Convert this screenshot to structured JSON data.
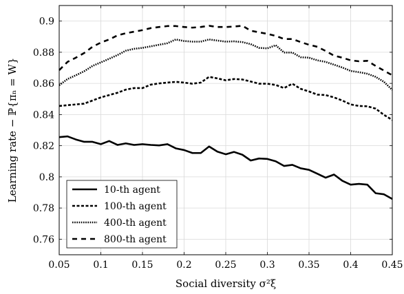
{
  "chart_data": {
    "type": "line",
    "xlabel": "Social diversity σ²ξ",
    "ylabel": "Learning rate − ℙ{πₙ = W}",
    "xlim": [
      0.05,
      0.45
    ],
    "ylim": [
      0.75,
      0.91
    ],
    "xticks": [
      0.05,
      0.1,
      0.15,
      0.2,
      0.25,
      0.3,
      0.35,
      0.4,
      0.45
    ],
    "xtick_labels": [
      "0.05",
      "0.1",
      "0.15",
      "0.2",
      "0.25",
      "0.3",
      "0.35",
      "0.4",
      "0.45"
    ],
    "yticks": [
      0.76,
      0.78,
      0.8,
      0.82,
      0.84,
      0.86,
      0.88,
      0.9
    ],
    "ytick_labels": [
      "0.76",
      "0.78",
      "0.8",
      "0.82",
      "0.84",
      "0.86",
      "0.88",
      "0.9"
    ],
    "grid": true,
    "legend_position": "bottom-left",
    "x": [
      0.05,
      0.06,
      0.07,
      0.08,
      0.09,
      0.1,
      0.11,
      0.12,
      0.13,
      0.14,
      0.15,
      0.16,
      0.17,
      0.18,
      0.19,
      0.2,
      0.21,
      0.22,
      0.23,
      0.24,
      0.25,
      0.26,
      0.27,
      0.28,
      0.29,
      0.3,
      0.31,
      0.32,
      0.33,
      0.34,
      0.35,
      0.36,
      0.37,
      0.38,
      0.39,
      0.4,
      0.41,
      0.42,
      0.43,
      0.44,
      0.45
    ],
    "series": [
      {
        "name": "10-th agent",
        "dash": "solid",
        "values": [
          0.8255,
          0.826,
          0.824,
          0.8225,
          0.8225,
          0.821,
          0.823,
          0.8205,
          0.8215,
          0.8205,
          0.821,
          0.8205,
          0.8202,
          0.821,
          0.8183,
          0.8172,
          0.8153,
          0.8153,
          0.8195,
          0.8162,
          0.8145,
          0.816,
          0.8142,
          0.8105,
          0.8118,
          0.8115,
          0.81,
          0.807,
          0.8077,
          0.8055,
          0.8045,
          0.802,
          0.7995,
          0.8015,
          0.7975,
          0.795,
          0.7955,
          0.795,
          0.7895,
          0.7888,
          0.7858
        ]
      },
      {
        "name": "100-th agent",
        "dash": "dash",
        "values": [
          0.8455,
          0.846,
          0.8465,
          0.847,
          0.849,
          0.851,
          0.8525,
          0.854,
          0.856,
          0.857,
          0.857,
          0.8592,
          0.86,
          0.8605,
          0.861,
          0.8605,
          0.8598,
          0.8605,
          0.8642,
          0.8632,
          0.862,
          0.8628,
          0.8625,
          0.8612,
          0.8598,
          0.8598,
          0.859,
          0.857,
          0.8598,
          0.8565,
          0.8548,
          0.8528,
          0.8525,
          0.851,
          0.849,
          0.8465,
          0.8455,
          0.8453,
          0.8438,
          0.8398,
          0.8365
        ]
      },
      {
        "name": "400-th agent",
        "dash": "dot",
        "values": [
          0.8588,
          0.8628,
          0.8652,
          0.8678,
          0.8712,
          0.8735,
          0.8758,
          0.8782,
          0.881,
          0.8822,
          0.8828,
          0.8838,
          0.8848,
          0.8858,
          0.8882,
          0.8872,
          0.8868,
          0.8868,
          0.8882,
          0.8875,
          0.8868,
          0.887,
          0.8865,
          0.8852,
          0.8828,
          0.8825,
          0.8845,
          0.8798,
          0.8798,
          0.8768,
          0.8765,
          0.8748,
          0.8738,
          0.872,
          0.8702,
          0.868,
          0.8672,
          0.8662,
          0.8642,
          0.861,
          0.8558
        ]
      },
      {
        "name": "800-th agent",
        "dash": "bigdash",
        "values": [
          0.8685,
          0.8738,
          0.8765,
          0.8795,
          0.8835,
          0.8862,
          0.8882,
          0.8908,
          0.8922,
          0.8932,
          0.8942,
          0.8955,
          0.8962,
          0.8968,
          0.8968,
          0.8962,
          0.8958,
          0.8962,
          0.897,
          0.8962,
          0.8962,
          0.8965,
          0.897,
          0.8938,
          0.8928,
          0.8918,
          0.8905,
          0.8885,
          0.8885,
          0.8865,
          0.8848,
          0.8835,
          0.8808,
          0.8778,
          0.8765,
          0.8748,
          0.8742,
          0.8745,
          0.8712,
          0.8682,
          0.8652
        ]
      }
    ]
  }
}
